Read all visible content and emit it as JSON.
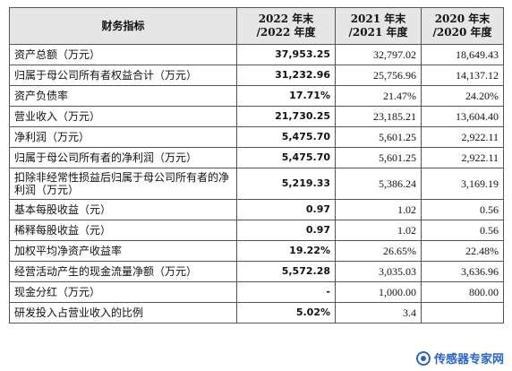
{
  "table": {
    "headers": [
      "财务指标",
      "2022 年末\n/2022 年度",
      "2021 年末\n/2021 年度",
      "2020 年末\n/2020 年度"
    ],
    "rows": [
      {
        "label": "资产总额（万元）",
        "v2022": "37,953.25",
        "v2021": "32,797.02",
        "v2020": "18,649.43"
      },
      {
        "label": "归属于母公司所有者权益合计（万元）",
        "v2022": "31,232.96",
        "v2021": "25,756.96",
        "v2020": "14,137.12"
      },
      {
        "label": "资产负债率",
        "v2022": "17.71%",
        "v2021": "21.47%",
        "v2020": "24.20%"
      },
      {
        "label": "营业收入（万元）",
        "v2022": "21,730.25",
        "v2021": "23,185.21",
        "v2020": "13,604.40"
      },
      {
        "label": "净利润（万元）",
        "v2022": "5,475.70",
        "v2021": "5,601.25",
        "v2020": "2,922.11"
      },
      {
        "label": "归属于母公司所有者的净利润（万元）",
        "v2022": "5,475.70",
        "v2021": "5,601.25",
        "v2020": "2,922.11"
      },
      {
        "label": "扣除非经常性损益后归属于母公司所有者的净利润（万元）",
        "v2022": "5,219.33",
        "v2021": "5,386.24",
        "v2020": "3,169.19"
      },
      {
        "label": "基本每股收益（元）",
        "v2022": "0.97",
        "v2021": "1.02",
        "v2020": "0.56"
      },
      {
        "label": "稀释每股收益（元）",
        "v2022": "0.97",
        "v2021": "1.02",
        "v2020": "0.56"
      },
      {
        "label": "加权平均净资产收益率",
        "v2022": "19.22%",
        "v2021": "26.65%",
        "v2020": "22.48%"
      },
      {
        "label": "经营活动产生的现金流量净额（万元）",
        "v2022": "5,572.28",
        "v2021": "3,035.03",
        "v2020": "3,636.96"
      },
      {
        "label": "现金分红（万元）",
        "v2022": "-",
        "v2021": "1,000.00",
        "v2020": "800.00"
      },
      {
        "label": "研发投入占营业收入的比例",
        "v2022": "5.02%",
        "v2021": "3.4",
        "v2020": ""
      }
    ]
  },
  "watermark": {
    "text": "传感器专家网"
  }
}
